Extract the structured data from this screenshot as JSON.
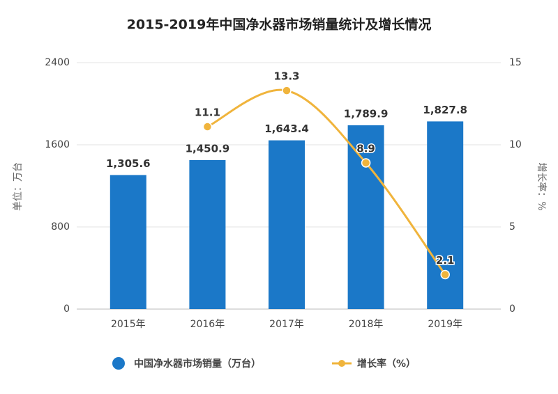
{
  "chart_data": {
    "type": "bar-line",
    "title": "2015-2019年中国净水器市场销量统计及增长情况",
    "y_label": "单位：万台",
    "y2_label": "增长率：%",
    "categories": [
      "2015年",
      "2016年",
      "2017年",
      "2018年",
      "2019年"
    ],
    "series": [
      {
        "name": "中国净水器市场销量（万台）",
        "type": "bar",
        "color": "#1b78c8",
        "values": [
          1305.6,
          1450.9,
          1643.4,
          1789.9,
          1827.8
        ],
        "value_labels": [
          "1,305.6",
          "1,450.9",
          "1,643.4",
          "1,789.9",
          "1,827.8"
        ]
      },
      {
        "name": "增长率（%）",
        "type": "line",
        "color": "#f0b43c",
        "axis": "y2",
        "values": [
          null,
          11.1,
          13.3,
          8.9,
          2.1
        ]
      }
    ],
    "ylim": [
      0,
      2400
    ],
    "yticks": [
      0,
      800,
      1600,
      2400
    ],
    "y2lim": [
      0,
      15
    ],
    "y2ticks": [
      0,
      5,
      10,
      15
    ],
    "grid": true,
    "legend": "bottom"
  }
}
